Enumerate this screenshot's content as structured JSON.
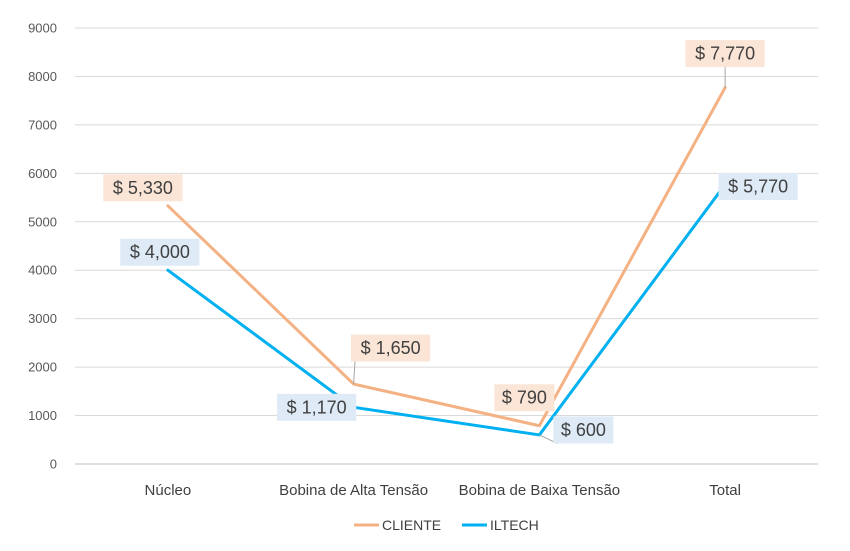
{
  "chart_data": {
    "type": "line",
    "categories": [
      "Núcleo",
      "Bobina de Alta Tensão",
      "Bobina de Baixa Tensão",
      "Total"
    ],
    "ylim": [
      0,
      9000
    ],
    "yticks": [
      0,
      1000,
      2000,
      3000,
      4000,
      5000,
      6000,
      7000,
      8000,
      9000
    ],
    "grid": true,
    "legend": "bottom",
    "series": [
      {
        "name": "CLIENTE",
        "color": "#F4B183",
        "label_bg": "#FBE5D6",
        "values": [
          5330,
          1650,
          790,
          7770
        ],
        "labels": [
          "$ 5,330",
          "$ 1,650",
          "$ 790",
          "$ 7,770"
        ]
      },
      {
        "name": "ILTECH",
        "color": "#00B0F0",
        "label_bg": "#DEEBF7",
        "values": [
          4000,
          1170,
          600,
          5770
        ],
        "labels": [
          "$ 4,000",
          "$ 1,170",
          "$ 600",
          "$ 5,770"
        ]
      }
    ]
  }
}
